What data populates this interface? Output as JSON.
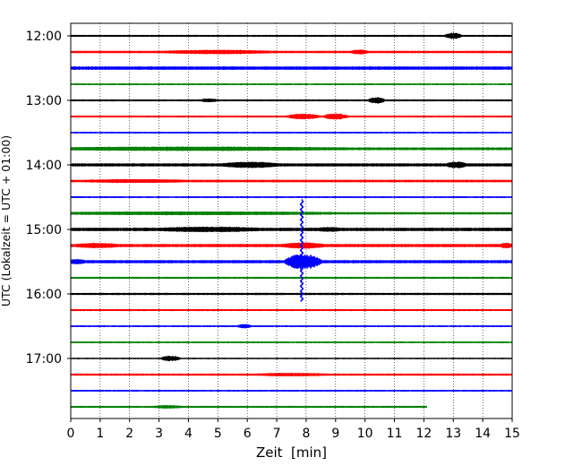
{
  "chart_data": {
    "type": "line",
    "title": "",
    "xlabel": "Zeit  [min]",
    "ylabel": "UTC (Lokalzeit = UTC + 01:00)",
    "xlim": [
      0,
      15
    ],
    "x_ticks": [
      0,
      1,
      2,
      3,
      4,
      5,
      6,
      7,
      8,
      9,
      10,
      11,
      12,
      13,
      14,
      15
    ],
    "y_range_utc": [
      "11:45",
      "17:45"
    ],
    "y_ticks": [
      "12:00",
      "13:00",
      "14:00",
      "15:00",
      "16:00",
      "17:00"
    ],
    "trace_interval_min": 15,
    "grid": "vertical dotted at each minute",
    "legend": "none",
    "trace_colors": [
      "#000000",
      "#ff0000",
      "#0000ff",
      "#008000"
    ],
    "traces": [
      {
        "start": "12:00",
        "color": "#000000",
        "end_min": 15,
        "noise": 0.7,
        "events": [
          {
            "t": 13.0,
            "amp": 2.2,
            "dur": 0.6
          }
        ]
      },
      {
        "start": "12:15",
        "color": "#ff0000",
        "end_min": 15,
        "noise": 0.9,
        "events": [
          {
            "t": 5.0,
            "amp": 1.0,
            "dur": 4.0
          },
          {
            "t": 9.8,
            "amp": 1.3,
            "dur": 0.6
          }
        ]
      },
      {
        "start": "12:30",
        "color": "#0000ff",
        "end_min": 15,
        "noise": 1.4,
        "events": []
      },
      {
        "start": "12:45",
        "color": "#008000",
        "end_min": 15,
        "noise": 0.6,
        "events": []
      },
      {
        "start": "13:00",
        "color": "#000000",
        "end_min": 15,
        "noise": 0.7,
        "events": [
          {
            "t": 4.7,
            "amp": 1.0,
            "dur": 0.6
          },
          {
            "t": 10.4,
            "amp": 2.2,
            "dur": 0.6
          }
        ]
      },
      {
        "start": "13:15",
        "color": "#ff0000",
        "end_min": 15,
        "noise": 0.7,
        "events": [
          {
            "t": 7.9,
            "amp": 1.8,
            "dur": 1.2
          },
          {
            "t": 9.0,
            "amp": 2.2,
            "dur": 0.9
          }
        ]
      },
      {
        "start": "13:30",
        "color": "#0000ff",
        "end_min": 15,
        "noise": 0.6,
        "events": []
      },
      {
        "start": "13:45",
        "color": "#008000",
        "end_min": 15,
        "noise": 1.1,
        "events": [
          {
            "t": 4.0,
            "amp": 0.8,
            "dur": 11.0
          }
        ]
      },
      {
        "start": "14:00",
        "color": "#000000",
        "end_min": 15,
        "noise": 1.3,
        "events": [
          {
            "t": 6.1,
            "amp": 1.6,
            "dur": 2.0
          },
          {
            "t": 13.1,
            "amp": 1.8,
            "dur": 0.7
          }
        ]
      },
      {
        "start": "14:15",
        "color": "#ff0000",
        "end_min": 15,
        "noise": 1.0,
        "events": [
          {
            "t": 2.2,
            "amp": 0.7,
            "dur": 3.5
          }
        ]
      },
      {
        "start": "14:30",
        "color": "#0000ff",
        "end_min": 15,
        "noise": 0.6,
        "events": []
      },
      {
        "start": "14:45",
        "color": "#008000",
        "end_min": 15,
        "noise": 0.9,
        "events": [
          {
            "t": 4.2,
            "amp": 0.7,
            "dur": 10.8
          }
        ]
      },
      {
        "start": "15:00",
        "color": "#000000",
        "end_min": 15,
        "noise": 1.4,
        "events": [
          {
            "t": 4.7,
            "amp": 1.1,
            "dur": 3.5
          },
          {
            "t": 8.8,
            "amp": 0.8,
            "dur": 0.8
          }
        ]
      },
      {
        "start": "15:15",
        "color": "#ff0000",
        "end_min": 15,
        "noise": 1.3,
        "events": [
          {
            "t": 0.9,
            "amp": 1.1,
            "dur": 1.5
          },
          {
            "t": 7.9,
            "amp": 1.6,
            "dur": 1.5
          },
          {
            "t": 14.8,
            "amp": 1.3,
            "dur": 0.4
          }
        ]
      },
      {
        "start": "15:30",
        "color": "#0000ff",
        "end_min": 15,
        "noise": 1.3,
        "events": [
          {
            "t": 0.2,
            "amp": 1.2,
            "dur": 0.6
          },
          {
            "t": 7.9,
            "amp": 6.0,
            "dur": 1.3
          }
        ]
      },
      {
        "start": "15:45",
        "color": "#008000",
        "end_min": 15,
        "noise": 0.7,
        "events": []
      },
      {
        "start": "16:00",
        "color": "#000000",
        "end_min": 15,
        "noise": 0.8,
        "events": []
      },
      {
        "start": "16:15",
        "color": "#ff0000",
        "end_min": 15,
        "noise": 0.7,
        "events": []
      },
      {
        "start": "16:30",
        "color": "#0000ff",
        "end_min": 15,
        "noise": 0.6,
        "events": [
          {
            "t": 5.9,
            "amp": 1.3,
            "dur": 0.5
          }
        ]
      },
      {
        "start": "16:45",
        "color": "#008000",
        "end_min": 15,
        "noise": 0.6,
        "events": []
      },
      {
        "start": "17:00",
        "color": "#000000",
        "end_min": 15,
        "noise": 0.5,
        "events": [
          {
            "t": 3.4,
            "amp": 2.0,
            "dur": 0.7
          }
        ]
      },
      {
        "start": "17:15",
        "color": "#ff0000",
        "end_min": 15,
        "noise": 0.8,
        "events": [
          {
            "t": 7.5,
            "amp": 0.7,
            "dur": 2.5
          }
        ]
      },
      {
        "start": "17:30",
        "color": "#0000ff",
        "end_min": 15,
        "noise": 0.6,
        "events": []
      },
      {
        "start": "17:45",
        "color": "#008000",
        "end_min": 12.1,
        "noise": 0.7,
        "events": [
          {
            "t": 3.3,
            "amp": 0.8,
            "dur": 1.0
          }
        ]
      }
    ],
    "spike": {
      "t": 7.85,
      "color": "#0000ff",
      "top_utc": "14:32",
      "bottom_utc": "16:07"
    }
  }
}
